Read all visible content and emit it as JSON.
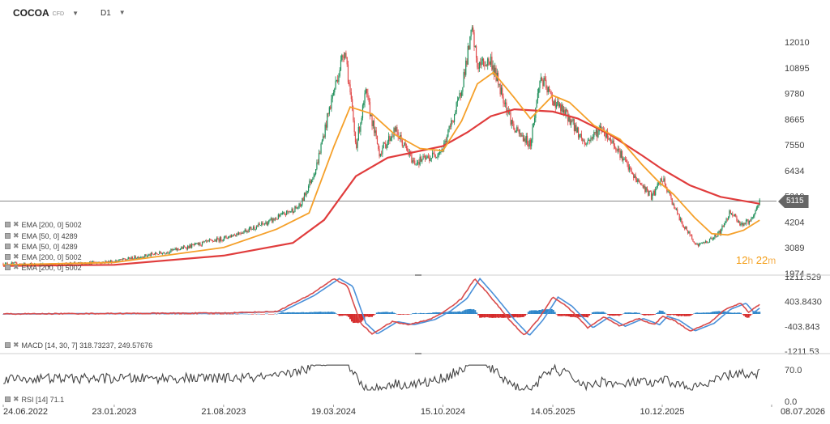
{
  "header": {
    "symbol": "COCOA",
    "instrument_type": "CFD",
    "timeframe": "D1"
  },
  "timer": {
    "hours": "12",
    "h_unit": "h",
    "minutes": "22",
    "m_unit": "m"
  },
  "legends": {
    "main": [
      "EMA [200, 0] 5002",
      "EMA [50, 0] 4289",
      "EMA [50, 0] 4289",
      "EMA [200, 0] 5002",
      "EMA [200, 0] 5002"
    ],
    "macd": "MACD [14, 30, 7] 318.73237, 249.57676",
    "rsi": "RSI [14] 71.1"
  },
  "colors": {
    "up": "#1f8f5a",
    "down": "#e04848",
    "ema50": "#f5a02a",
    "ema200": "#e03c3c",
    "macd_line": "#d94b4b",
    "signal_line": "#4a90d9",
    "hist_up": "#2e86c9",
    "hist_down": "#d62b2b",
    "rsi": "#444444",
    "price_line": "#888888"
  },
  "chart_data": [
    {
      "type": "candlestick",
      "title": "COCOA CFD D1",
      "ylim": [
        1974,
        13000
      ],
      "yticks": [
        "12010",
        "10895",
        "9780",
        "8665",
        "7550",
        "6434",
        "5319",
        "4204",
        "3089",
        "1974"
      ],
      "xticks": [
        "24.06.2022",
        "23.01.2023",
        "21.08.2023",
        "19.03.2024",
        "15.10.2024",
        "14.05.2025",
        "10.12.2025",
        "08.07.2026"
      ],
      "last_price": "5115",
      "price_path": [
        [
          "2022-06-24",
          2400
        ],
        [
          "2022-10-01",
          2350
        ],
        [
          "2023-01-23",
          2500
        ],
        [
          "2023-05-01",
          2900
        ],
        [
          "2023-08-21",
          3500
        ],
        [
          "2023-11-15",
          4200
        ],
        [
          "2024-01-15",
          4900
        ],
        [
          "2024-02-15",
          6600
        ],
        [
          "2024-03-15",
          9500
        ],
        [
          "2024-04-10",
          11800
        ],
        [
          "2024-05-01",
          7500
        ],
        [
          "2024-05-20",
          9800
        ],
        [
          "2024-06-15",
          7200
        ],
        [
          "2024-07-15",
          8200
        ],
        [
          "2024-08-20",
          6800
        ],
        [
          "2024-09-20",
          7000
        ],
        [
          "2024-10-15",
          7400
        ],
        [
          "2024-11-15",
          9500
        ],
        [
          "2024-12-10",
          12500
        ],
        [
          "2024-12-20",
          11000
        ],
        [
          "2025-01-15",
          11200
        ],
        [
          "2025-02-10",
          9500
        ],
        [
          "2025-03-01",
          8200
        ],
        [
          "2025-04-01",
          7600
        ],
        [
          "2025-04-20",
          10500
        ],
        [
          "2025-05-14",
          9500
        ],
        [
          "2025-06-15",
          8700
        ],
        [
          "2025-07-15",
          7600
        ],
        [
          "2025-08-15",
          8300
        ],
        [
          "2025-09-15",
          7400
        ],
        [
          "2025-10-15",
          6200
        ],
        [
          "2025-11-01",
          5800
        ],
        [
          "2025-11-20",
          5300
        ],
        [
          "2025-12-10",
          6100
        ],
        [
          "2026-01-15",
          4200
        ],
        [
          "2026-02-15",
          3200
        ],
        [
          "2026-03-10",
          3400
        ],
        [
          "2026-04-01",
          3800
        ],
        [
          "2026-04-20",
          4700
        ],
        [
          "2026-05-10",
          4100
        ],
        [
          "2026-06-01",
          4300
        ],
        [
          "2026-06-15",
          5115
        ]
      ],
      "ema50_path": [
        [
          "2022-06-24",
          2350
        ],
        [
          "2023-01-23",
          2450
        ],
        [
          "2023-08-21",
          3100
        ],
        [
          "2023-12-01",
          3900
        ],
        [
          "2024-02-01",
          4600
        ],
        [
          "2024-03-20",
          7500
        ],
        [
          "2024-04-20",
          9200
        ],
        [
          "2024-06-01",
          8900
        ],
        [
          "2024-07-15",
          8000
        ],
        [
          "2024-09-01",
          7400
        ],
        [
          "2024-10-15",
          7300
        ],
        [
          "2024-11-20",
          8600
        ],
        [
          "2024-12-20",
          10200
        ],
        [
          "2025-01-20",
          10700
        ],
        [
          "2025-03-01",
          9600
        ],
        [
          "2025-04-01",
          8700
        ],
        [
          "2025-05-14",
          9700
        ],
        [
          "2025-06-15",
          9400
        ],
        [
          "2025-08-01",
          8400
        ],
        [
          "2025-09-20",
          7800
        ],
        [
          "2025-11-01",
          6700
        ],
        [
          "2025-12-01",
          6000
        ],
        [
          "2026-01-01",
          5400
        ],
        [
          "2026-02-10",
          4400
        ],
        [
          "2026-03-15",
          3700
        ],
        [
          "2026-04-15",
          3650
        ],
        [
          "2026-05-15",
          3850
        ],
        [
          "2026-06-15",
          4289
        ]
      ],
      "ema200_path": [
        [
          "2022-06-24",
          2300
        ],
        [
          "2023-01-23",
          2350
        ],
        [
          "2023-08-21",
          2750
        ],
        [
          "2024-01-01",
          3300
        ],
        [
          "2024-03-01",
          4300
        ],
        [
          "2024-05-01",
          6200
        ],
        [
          "2024-07-01",
          7000
        ],
        [
          "2024-10-15",
          7500
        ],
        [
          "2024-12-01",
          8100
        ],
        [
          "2025-01-15",
          8800
        ],
        [
          "2025-03-01",
          9100
        ],
        [
          "2025-05-14",
          9000
        ],
        [
          "2025-07-01",
          8700
        ],
        [
          "2025-09-01",
          8000
        ],
        [
          "2025-11-01",
          7100
        ],
        [
          "2025-12-10",
          6500
        ],
        [
          "2026-02-01",
          5800
        ],
        [
          "2026-04-01",
          5300
        ],
        [
          "2026-06-15",
          5002
        ]
      ]
    },
    {
      "type": "macd",
      "ylim": [
        -1211.53,
        1211.529
      ],
      "yticks": [
        "1211.529",
        "403.8430",
        "-403.843",
        "-1211.53"
      ],
      "last_macd": 318.73237,
      "last_signal": 249.57676,
      "macd_path": [
        [
          "2022-06-24",
          0
        ],
        [
          "2023-08-21",
          30
        ],
        [
          "2023-12-01",
          80
        ],
        [
          "2024-02-01",
          600
        ],
        [
          "2024-03-20",
          1150
        ],
        [
          "2024-04-15",
          900
        ],
        [
          "2024-05-10",
          -300
        ],
        [
          "2024-06-01",
          -650
        ],
        [
          "2024-07-10",
          -250
        ],
        [
          "2024-08-10",
          -350
        ],
        [
          "2024-09-20",
          -180
        ],
        [
          "2024-10-20",
          100
        ],
        [
          "2024-11-20",
          500
        ],
        [
          "2024-12-15",
          1150
        ],
        [
          "2025-01-10",
          650
        ],
        [
          "2025-02-20",
          -200
        ],
        [
          "2025-03-20",
          -700
        ],
        [
          "2025-04-15",
          -200
        ],
        [
          "2025-05-14",
          550
        ],
        [
          "2025-06-10",
          250
        ],
        [
          "2025-07-20",
          -450
        ],
        [
          "2025-08-20",
          -100
        ],
        [
          "2025-09-20",
          -400
        ],
        [
          "2025-10-25",
          -150
        ],
        [
          "2025-11-25",
          -350
        ],
        [
          "2025-12-10",
          -80
        ],
        [
          "2026-01-01",
          -200
        ],
        [
          "2026-02-01",
          -550
        ],
        [
          "2026-03-10",
          -300
        ],
        [
          "2026-04-10",
          150
        ],
        [
          "2026-05-10",
          350
        ],
        [
          "2026-05-25",
          50
        ],
        [
          "2026-06-15",
          318.7
        ]
      ]
    },
    {
      "type": "line",
      "series": [
        {
          "name": "RSI [14]",
          "last": 71.1
        }
      ],
      "ylim": [
        0,
        100
      ],
      "yticks": [
        "70.0",
        "0.0"
      ]
    }
  ]
}
